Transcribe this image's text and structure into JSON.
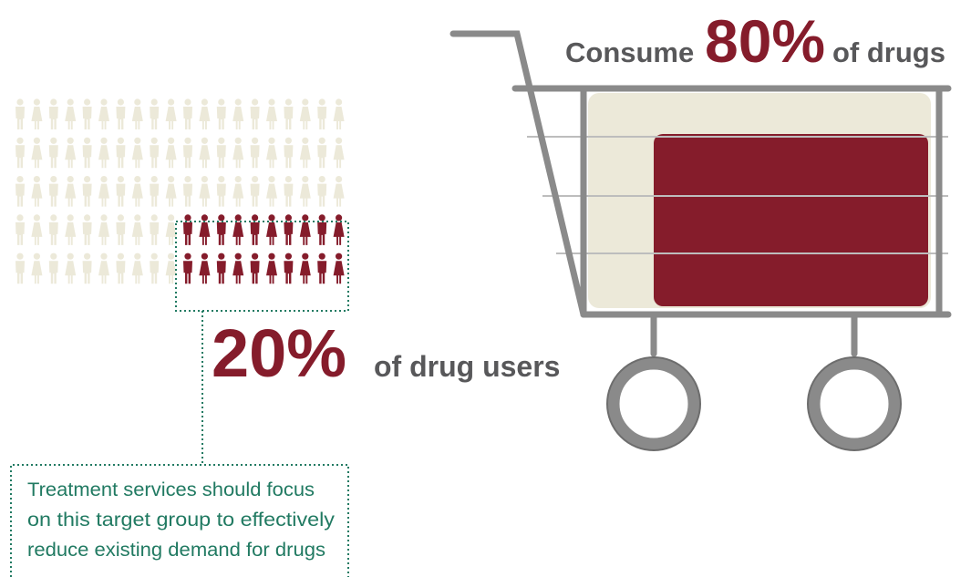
{
  "headline": {
    "prefix": "Consume",
    "share": "80%",
    "suffix": "of drugs"
  },
  "group": {
    "share": "20%",
    "suffix": "of drug users"
  },
  "note": {
    "lines": [
      "Treatment services should focus",
      "on this target group to effectively",
      "reduce existing demand for drugs"
    ]
  }
}
